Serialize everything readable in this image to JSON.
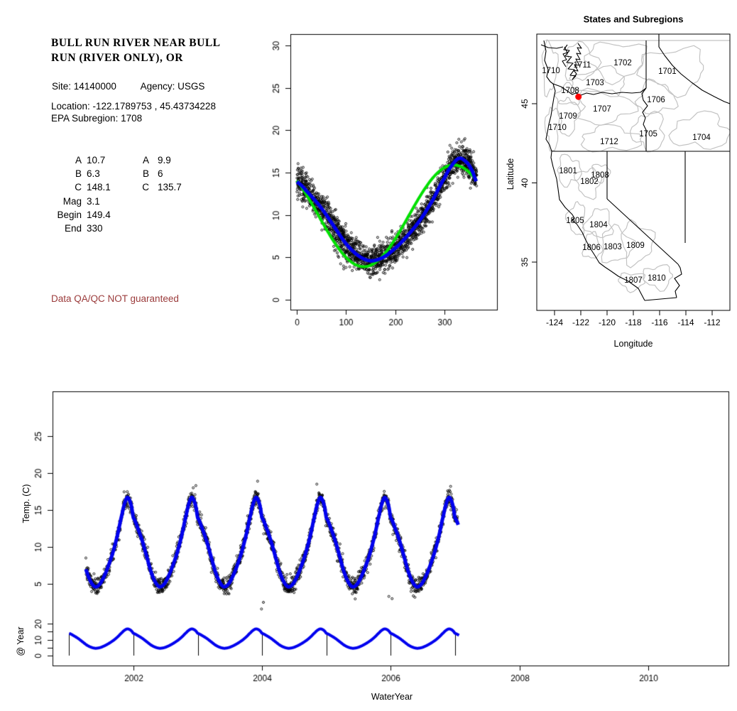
{
  "station": {
    "title_line1": "BULL RUN RIVER NEAR BULL",
    "title_line2": "RUN (RIVER ONLY), OR",
    "site_label": "Site:",
    "site_value": "14140000",
    "agency_label": "Agency:",
    "agency_value": "USGS",
    "location_line": "Location: -122.1789753 , 45.43734228",
    "epa_line": "EPA Subregion: 1708",
    "longitude": -122.1789753,
    "latitude": 45.43734228,
    "qa_notice": "Data QA/QC NOT guaranteed",
    "qa_color": "#9B3B3B"
  },
  "parameters": {
    "col1": [
      {
        "label": "A",
        "value": "10.7"
      },
      {
        "label": "B",
        "value": "6.3"
      },
      {
        "label": "C",
        "value": "148.1"
      },
      {
        "label": "Mag",
        "value": "3.1"
      },
      {
        "label": "Begin",
        "value": "149.4"
      },
      {
        "label": "End",
        "value": "330"
      }
    ],
    "col2": [
      {
        "label": "A",
        "value": "9.9"
      },
      {
        "label": "B",
        "value": "6"
      },
      {
        "label": "C",
        "value": "135.7"
      }
    ]
  },
  "chart_data": [
    {
      "type": "scatter",
      "name": "seasonal-day-of-year-plot",
      "title": "",
      "xlabel": "",
      "ylabel": "",
      "xlim": [
        -15,
        381
      ],
      "ylim": [
        -1.2,
        31.5
      ],
      "xticks": [
        0,
        100,
        200,
        300
      ],
      "yticks": [
        0,
        5,
        10,
        15,
        20,
        25,
        30
      ],
      "grid": false,
      "series": [
        {
          "name": "daily-water-temperature",
          "marker": "open-circle",
          "color": "#000000",
          "generated": {
            "seed": 42,
            "reps": 5,
            "noise_sd": 0.78,
            "low_outliers": {
              "n": 30,
              "day_range": [
                58,
                112
              ],
              "depth": [
                0.8,
                3.4
              ]
            },
            "high_outliers": {
              "n": 16,
              "day_range": [
                298,
                356
              ],
              "height": [
                0.7,
                2.9
              ]
            },
            "start_outliers": {
              "n": 10,
              "day_range": [
                0,
                25
              ],
              "height": [
                0.3,
                2.6
              ]
            }
          }
        },
        {
          "name": "sine-fit",
          "color": "#00E000",
          "linewidth": 4,
          "model": "y = A - B*cos(2*pi*(d - C)/365)",
          "A": 9.9,
          "B": 6,
          "C": 135.7
        },
        {
          "name": "seasonal-fit",
          "color": "#0000EE",
          "linewidth": 5,
          "control_points": [
            [
              0,
              13.9
            ],
            [
              25,
              12.5
            ],
            [
              50,
              10.8
            ],
            [
              75,
              8.7
            ],
            [
              100,
              6.6
            ],
            [
              125,
              5.2
            ],
            [
              149,
              4.6
            ],
            [
              175,
              5.0
            ],
            [
              200,
              6.1
            ],
            [
              225,
              7.6
            ],
            [
              250,
              9.4
            ],
            [
              275,
              11.7
            ],
            [
              300,
              14.4
            ],
            [
              315,
              15.9
            ],
            [
              330,
              16.7
            ],
            [
              345,
              16.2
            ],
            [
              355,
              15.3
            ],
            [
              365,
              13.9
            ]
          ]
        }
      ]
    },
    {
      "type": "map",
      "name": "states-and-subregions-map",
      "title": "States and Subregions",
      "xlabel": "Longitude",
      "ylabel": "Latitude",
      "xticks": [
        -124,
        -122,
        -120,
        -118,
        -116,
        -114,
        -112
      ],
      "yticks": [
        35,
        40,
        45
      ],
      "xlim": [
        -125.35,
        -110.65
      ],
      "ylim": [
        31.95,
        49.4
      ],
      "site": {
        "lon": -122.1789753,
        "lat": 45.43734228,
        "color": "#FF0000"
      },
      "boundary_colors": {
        "state": "#000000",
        "subregion": "#C3C3C3"
      },
      "region_labels": [
        {
          "id": "1711",
          "lon": -121.89,
          "lat": 47.47
        },
        {
          "id": "1702",
          "lon": -118.81,
          "lat": 47.6
        },
        {
          "id": "1701",
          "lon": -115.41,
          "lat": 47.06
        },
        {
          "id": "1710",
          "lon": -124.27,
          "lat": 47.11
        },
        {
          "id": "1703",
          "lon": -120.92,
          "lat": 46.35
        },
        {
          "id": "1708",
          "lon": -122.81,
          "lat": 45.85
        },
        {
          "id": "1706",
          "lon": -116.27,
          "lat": 45.27
        },
        {
          "id": "1707",
          "lon": -120.38,
          "lat": 44.69
        },
        {
          "id": "1709",
          "lon": -122.97,
          "lat": 44.24
        },
        {
          "id": "1710",
          "lon": -123.78,
          "lat": 43.52
        },
        {
          "id": "1705",
          "lon": -116.86,
          "lat": 43.12
        },
        {
          "id": "1704",
          "lon": -112.81,
          "lat": 42.89
        },
        {
          "id": "1712",
          "lon": -119.84,
          "lat": 42.62
        },
        {
          "id": "1801",
          "lon": -122.97,
          "lat": 40.79
        },
        {
          "id": "1808",
          "lon": -120.54,
          "lat": 40.52
        },
        {
          "id": "1802",
          "lon": -121.35,
          "lat": 40.11
        },
        {
          "id": "1805",
          "lon": -122.43,
          "lat": 37.65
        },
        {
          "id": "1804",
          "lon": -120.65,
          "lat": 37.38
        },
        {
          "id": "1806",
          "lon": -121.19,
          "lat": 35.94
        },
        {
          "id": "1803",
          "lon": -119.57,
          "lat": 35.99
        },
        {
          "id": "1809",
          "lon": -117.84,
          "lat": 36.08
        },
        {
          "id": "1807",
          "lon": -118.0,
          "lat": 33.88
        },
        {
          "id": "1810",
          "lon": -116.22,
          "lat": 34.01
        }
      ]
    },
    {
      "type": "scatter+line",
      "name": "water-year-time-series",
      "xlabel": "WaterYear",
      "ylabel": "Temp. (C)",
      "strip_ylabel": "@ Year",
      "xlim": [
        2000.74,
        2011.25
      ],
      "xticks": [
        2002,
        2004,
        2006,
        2008,
        2010
      ],
      "yticks_main": [
        5,
        10,
        15,
        20,
        25
      ],
      "yticks_strip_all": [
        0,
        5,
        10,
        15,
        20
      ],
      "yticks_strip_labeled": [
        0,
        10,
        20
      ],
      "x_start": 2001.26,
      "x_end": 2007.04,
      "fit_color": "#0000EE",
      "fit_linewidth": 5,
      "strip_linewidth": 4,
      "year_lines": [
        2001,
        2002,
        2003,
        2004,
        2005,
        2006,
        2007
      ],
      "seasonal_control_points": [
        [
          0,
          13.9
        ],
        [
          25,
          12.5
        ],
        [
          50,
          10.8
        ],
        [
          75,
          8.7
        ],
        [
          100,
          6.6
        ],
        [
          125,
          5.2
        ],
        [
          149,
          4.6
        ],
        [
          175,
          5.0
        ],
        [
          200,
          6.1
        ],
        [
          225,
          7.6
        ],
        [
          250,
          9.4
        ],
        [
          275,
          11.7
        ],
        [
          300,
          14.4
        ],
        [
          315,
          15.9
        ],
        [
          330,
          16.7
        ],
        [
          345,
          16.2
        ],
        [
          355,
          15.3
        ],
        [
          365,
          13.9
        ]
      ],
      "generated": {
        "seed": 7,
        "noise_sd": 0.55
      },
      "outliers": [
        [
          2002.97,
          18.3
        ],
        [
          2003.93,
          18.9
        ],
        [
          2003.99,
          1.6
        ],
        [
          2004.02,
          2.5
        ],
        [
          2004.85,
          18.5
        ],
        [
          2005.97,
          3.3
        ],
        [
          2006.02,
          3.0
        ],
        [
          2006.93,
          18.2
        ]
      ]
    }
  ]
}
